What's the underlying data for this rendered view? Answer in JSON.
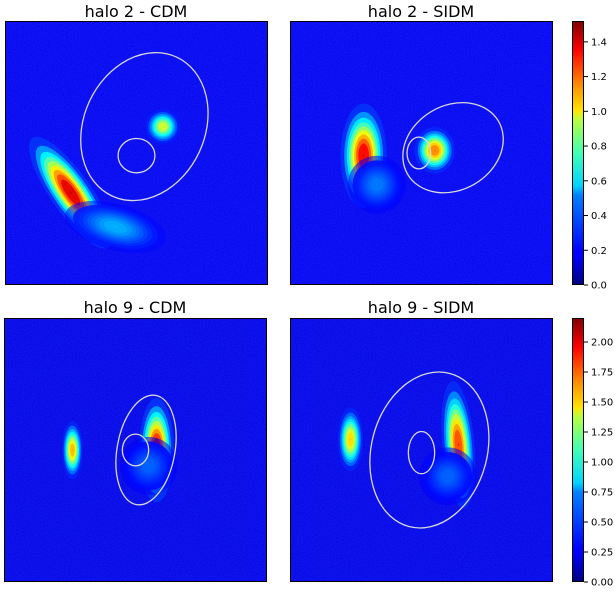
{
  "figure": {
    "title": ""
  },
  "chart_data": [
    {
      "type": "heatmap",
      "title": "halo 2 - CDM",
      "xlabel": "",
      "ylabel": "",
      "colormap": "jet",
      "colorbar_group": "row1",
      "critical_curves": [
        {
          "kind": "ellipse",
          "cx": 0.53,
          "cy": 0.4,
          "rx": 0.23,
          "ry": 0.29,
          "rotate": 25
        },
        {
          "kind": "ellipse",
          "cx": 0.5,
          "cy": 0.51,
          "rx": 0.07,
          "ry": 0.065,
          "rotate": 0
        }
      ],
      "blobs": [
        {
          "cx": 0.25,
          "cy": 0.65,
          "sx": 0.035,
          "sy": 0.115,
          "rotate": -35,
          "amp": 1.5
        },
        {
          "cx": 0.42,
          "cy": 0.78,
          "sx": 0.09,
          "sy": 0.04,
          "rotate": 15,
          "amp": 0.35
        },
        {
          "cx": 0.6,
          "cy": 0.4,
          "sx": 0.03,
          "sy": 0.03,
          "rotate": 0,
          "amp": 0.9
        }
      ]
    },
    {
      "type": "heatmap",
      "title": "halo 2 - SIDM",
      "xlabel": "",
      "ylabel": "",
      "colormap": "jet",
      "colorbar_group": "row1",
      "critical_curves": [
        {
          "kind": "ellipse",
          "cx": 0.62,
          "cy": 0.48,
          "rx": 0.2,
          "ry": 0.16,
          "rotate": -30
        },
        {
          "kind": "ellipse",
          "cx": 0.49,
          "cy": 0.5,
          "rx": 0.045,
          "ry": 0.06,
          "rotate": 0
        }
      ],
      "blobs": [
        {
          "cx": 0.28,
          "cy": 0.51,
          "sx": 0.04,
          "sy": 0.09,
          "rotate": 0,
          "amp": 1.45
        },
        {
          "cx": 0.55,
          "cy": 0.49,
          "sx": 0.035,
          "sy": 0.04,
          "rotate": 0,
          "amp": 1.2
        },
        {
          "cx": 0.33,
          "cy": 0.62,
          "sx": 0.05,
          "sy": 0.05,
          "rotate": 0,
          "amp": 0.25
        }
      ]
    },
    {
      "type": "heatmap",
      "title": "halo 9 - CDM",
      "xlabel": "",
      "ylabel": "",
      "colormap": "jet",
      "colorbar_group": "row2",
      "critical_curves": [
        {
          "kind": "ellipse",
          "cx": 0.54,
          "cy": 0.5,
          "rx": 0.11,
          "ry": 0.21,
          "rotate": 10
        },
        {
          "kind": "ellipse",
          "cx": 0.5,
          "cy": 0.5,
          "rx": 0.05,
          "ry": 0.06,
          "rotate": 0
        }
      ],
      "blobs": [
        {
          "cx": 0.26,
          "cy": 0.5,
          "sx": 0.018,
          "sy": 0.05,
          "rotate": 0,
          "amp": 1.6
        },
        {
          "cx": 0.58,
          "cy": 0.5,
          "sx": 0.03,
          "sy": 0.09,
          "rotate": 0,
          "amp": 2.2
        },
        {
          "cx": 0.55,
          "cy": 0.56,
          "sx": 0.05,
          "sy": 0.05,
          "rotate": 0,
          "amp": 0.3
        }
      ]
    },
    {
      "type": "heatmap",
      "title": "halo 9 - SIDM",
      "xlabel": "",
      "ylabel": "",
      "colormap": "jet",
      "colorbar_group": "row2",
      "critical_curves": [
        {
          "kind": "ellipse",
          "cx": 0.53,
          "cy": 0.5,
          "rx": 0.22,
          "ry": 0.3,
          "rotate": 15
        },
        {
          "kind": "ellipse",
          "cx": 0.5,
          "cy": 0.51,
          "rx": 0.05,
          "ry": 0.08,
          "rotate": 0
        }
      ],
      "blobs": [
        {
          "cx": 0.23,
          "cy": 0.46,
          "sx": 0.022,
          "sy": 0.055,
          "rotate": 0,
          "amp": 1.5
        },
        {
          "cx": 0.64,
          "cy": 0.48,
          "sx": 0.028,
          "sy": 0.11,
          "rotate": -5,
          "amp": 1.9
        },
        {
          "cx": 0.6,
          "cy": 0.6,
          "sx": 0.05,
          "sy": 0.05,
          "rotate": 0,
          "amp": 0.3
        }
      ]
    }
  ],
  "colorbars": {
    "row1": {
      "min": 0.0,
      "max": 1.52,
      "ticks": [
        "0.0",
        "0.2",
        "0.4",
        "0.6",
        "0.8",
        "1.0",
        "1.2",
        "1.4"
      ],
      "tick_values": [
        0.0,
        0.2,
        0.4,
        0.6,
        0.8,
        1.0,
        1.2,
        1.4
      ]
    },
    "row2": {
      "min": 0.0,
      "max": 2.2,
      "ticks": [
        "0.00",
        "0.25",
        "0.50",
        "0.75",
        "1.00",
        "1.25",
        "1.50",
        "1.75",
        "2.00"
      ],
      "tick_values": [
        0.0,
        0.25,
        0.5,
        0.75,
        1.0,
        1.25,
        1.5,
        1.75,
        2.0
      ]
    }
  },
  "background_level": 0.08,
  "critical_curve_color": "#d8d8d8",
  "axis_color": "#000000"
}
